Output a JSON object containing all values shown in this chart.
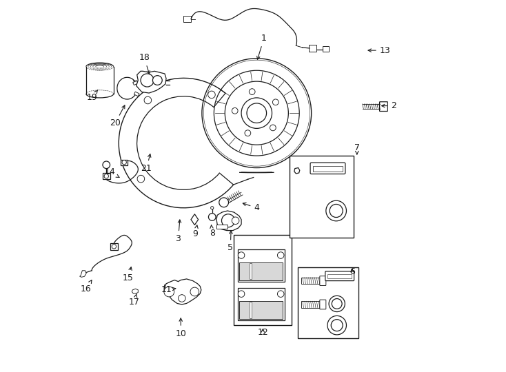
{
  "background_color": "#ffffff",
  "line_color": "#1a1a1a",
  "fig_width": 7.34,
  "fig_height": 5.4,
  "dpi": 100,
  "callouts": [
    [
      1,
      0.53,
      0.905,
      0.51,
      0.84
    ],
    [
      2,
      0.885,
      0.72,
      0.845,
      0.72
    ],
    [
      3,
      0.295,
      0.355,
      0.3,
      0.415
    ],
    [
      4,
      0.51,
      0.44,
      0.465,
      0.455
    ],
    [
      5,
      0.438,
      0.33,
      0.44,
      0.385
    ],
    [
      6,
      0.772,
      0.265,
      0.772,
      0.28
    ],
    [
      7,
      0.785,
      0.605,
      0.785,
      0.585
    ],
    [
      8,
      0.388,
      0.37,
      0.385,
      0.4
    ],
    [
      9,
      0.342,
      0.368,
      0.348,
      0.4
    ],
    [
      10,
      0.302,
      0.095,
      0.302,
      0.145
    ],
    [
      11,
      0.262,
      0.215,
      0.295,
      0.22
    ],
    [
      12,
      0.527,
      0.098,
      0.527,
      0.115
    ],
    [
      13,
      0.862,
      0.872,
      0.808,
      0.872
    ],
    [
      14,
      0.108,
      0.538,
      0.14,
      0.52
    ],
    [
      15,
      0.158,
      0.248,
      0.168,
      0.285
    ],
    [
      16,
      0.042,
      0.218,
      0.062,
      0.248
    ],
    [
      17,
      0.175,
      0.182,
      0.182,
      0.21
    ],
    [
      18,
      0.202,
      0.852,
      0.218,
      0.8
    ],
    [
      19,
      0.058,
      0.742,
      0.078,
      0.768
    ],
    [
      20,
      0.122,
      0.672,
      0.152,
      0.728
    ],
    [
      21,
      0.208,
      0.548,
      0.22,
      0.595
    ]
  ]
}
